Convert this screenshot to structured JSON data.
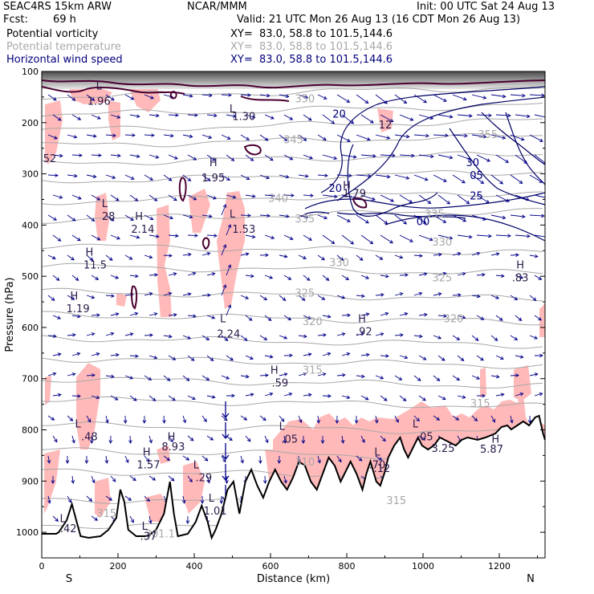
{
  "header": {
    "model": "SEAC4RS 15km ARW",
    "org": "NCAR/MMM",
    "init": "Init: 00 UTC Sat 24 Aug 13",
    "fcst_label": "Fcst:",
    "fcst_value": "69 h",
    "valid": "Valid: 21 UTC Mon 26 Aug 13 (16 CDT Mon 26 Aug 13)",
    "fields": [
      {
        "name": "Potential vorticity",
        "xy": "XY=  83.0, 58.8 to 101.5,144.6",
        "color": "#000000"
      },
      {
        "name": "Potential temperature",
        "xy": "XY=  83.0, 58.8 to 101.5,144.6",
        "color": "#a8a8a8"
      },
      {
        "name": "Horizontal wind speed",
        "xy": "XY=  83.0, 58.8 to 101.5,144.6",
        "color": "#00007a"
      }
    ]
  },
  "chart_data": {
    "type": "cross-section",
    "xlabel": "Distance (km)",
    "ylabel": "Pressure (hPa)",
    "xlim": [
      0,
      1320
    ],
    "ylim": [
      1050,
      100
    ],
    "xticks": [
      0,
      200,
      400,
      600,
      800,
      1000,
      1200
    ],
    "yticks": [
      100,
      200,
      300,
      400,
      500,
      600,
      700,
      800,
      900,
      1000
    ],
    "left_end_label": "S",
    "right_end_label": "N",
    "theta_labels": [
      {
        "x": 690,
        "p": 160,
        "text": "350"
      },
      {
        "x": 660,
        "p": 240,
        "text": "345"
      },
      {
        "x": 620,
        "p": 355,
        "text": "340"
      },
      {
        "x": 690,
        "p": 395,
        "text": "335"
      },
      {
        "x": 1030,
        "p": 385,
        "text": "335"
      },
      {
        "x": 1050,
        "p": 440,
        "text": "330"
      },
      {
        "x": 780,
        "p": 480,
        "text": "330"
      },
      {
        "x": 690,
        "p": 540,
        "text": "325"
      },
      {
        "x": 1050,
        "p": 510,
        "text": "325"
      },
      {
        "x": 710,
        "p": 595,
        "text": "320"
      },
      {
        "x": 1080,
        "p": 590,
        "text": "320"
      },
      {
        "x": 710,
        "p": 690,
        "text": "315"
      },
      {
        "x": 1150,
        "p": 755,
        "text": "315"
      },
      {
        "x": 690,
        "p": 870,
        "text": "310"
      },
      {
        "x": 170,
        "p": 970,
        "text": "315"
      },
      {
        "x": 930,
        "p": 945,
        "text": "315"
      },
      {
        "x": 310,
        "p": 1010,
        "text": "301.1"
      },
      {
        "x": 1170,
        "p": 230,
        "text": "355"
      }
    ],
    "wind_labels": [
      {
        "x": 780,
        "p": 190,
        "text": "20"
      },
      {
        "x": 770,
        "p": 335,
        "text": "20"
      },
      {
        "x": 1130,
        "p": 285,
        "text": "30"
      },
      {
        "x": 1140,
        "p": 310,
        "text": "05"
      },
      {
        "x": 1140,
        "p": 350,
        "text": "25"
      },
      {
        "x": 1000,
        "p": 400,
        "text": "00"
      }
    ],
    "extrema": [
      {
        "kind": "L",
        "x": 150,
        "p": 135,
        "value": "1.96",
        "lx": 150,
        "lp": 165
      },
      {
        "kind": "L",
        "x": 500,
        "p": 180,
        "value": "1.30",
        "lx": 530,
        "lp": 195
      },
      {
        "kind": "",
        "x": 0,
        "p": 0,
        "value": "",
        "lx": 20,
        "lp": 290
      },
      {
        "kind": "H",
        "x": 450,
        "p": 285,
        "value": "1.95",
        "lx": 450,
        "lp": 315
      },
      {
        "kind": "H",
        "x": 800,
        "p": 330,
        "value": "1.79",
        "lx": 820,
        "lp": 345
      },
      {
        "kind": "L",
        "x": 165,
        "p": 365,
        "value": "28",
        "lx": 175,
        "lp": 390
      },
      {
        "kind": "H",
        "x": 255,
        "p": 390,
        "value": "2.14",
        "lx": 265,
        "lp": 415
      },
      {
        "kind": "L",
        "x": 500,
        "p": 385,
        "value": "1.53",
        "lx": 530,
        "lp": 415
      },
      {
        "kind": "H",
        "x": 125,
        "p": 460,
        "value": "11.5",
        "lx": 140,
        "lp": 485
      },
      {
        "kind": "H",
        "x": 85,
        "p": 545,
        "value": "1.19",
        "lx": 95,
        "lp": 570
      },
      {
        "kind": "L",
        "x": 475,
        "p": 590,
        "value": "2.24",
        "lx": 490,
        "lp": 620
      },
      {
        "kind": "H",
        "x": 840,
        "p": 590,
        "value": ".92",
        "lx": 845,
        "lp": 615
      },
      {
        "kind": "H",
        "x": 610,
        "p": 690,
        "value": ".59",
        "lx": 625,
        "lp": 715
      },
      {
        "kind": "H",
        "x": 1255,
        "p": 485,
        "value": ".83",
        "lx": 1255,
        "lp": 510
      },
      {
        "kind": "L",
        "x": 95,
        "p": 795,
        "value": ".48",
        "lx": 125,
        "lp": 820
      },
      {
        "kind": "L",
        "x": 630,
        "p": 800,
        "value": ".05",
        "lx": 650,
        "lp": 825
      },
      {
        "kind": "L",
        "x": 980,
        "p": 795,
        "value": ".05",
        "lx": 1005,
        "lp": 820
      },
      {
        "kind": "H",
        "x": 340,
        "p": 820,
        "value": "8.93",
        "lx": 345,
        "lp": 840
      },
      {
        "kind": "H",
        "x": 275,
        "p": 850,
        "value": "1.57",
        "lx": 280,
        "lp": 875
      },
      {
        "kind": "L",
        "x": 405,
        "p": 875,
        "value": ".29",
        "lx": 425,
        "lp": 900
      },
      {
        "kind": "L",
        "x": 880,
        "p": 850,
        "value": ".70",
        "lx": 880,
        "lp": 875
      },
      {
        "kind": "",
        "x": 0,
        "p": 0,
        "value": "",
        "lx": 880,
        "lp": 895
      },
      {
        "kind": "H",
        "x": 1190,
        "p": 825,
        "value": "5.87",
        "lx": 1180,
        "lp": 845
      },
      {
        "kind": "",
        "x": 0,
        "p": 0,
        "value": "",
        "lx": 1045,
        "lp": 860
      },
      {
        "kind": "L",
        "x": 445,
        "p": 940,
        "value": "1.01",
        "lx": 455,
        "lp": 965
      },
      {
        "kind": "L",
        "x": 55,
        "p": 980,
        "value": ".42",
        "lx": 70,
        "lp": 1000
      },
      {
        "kind": "L",
        "x": 270,
        "p": 995,
        "value": ".37",
        "lx": 280,
        "lp": 1015
      }
    ],
    "extrema_text": {
      "left_top": "52",
      "mid_right": "12",
      "low_mid": ".12",
      "lower_right": "3.25"
    }
  }
}
